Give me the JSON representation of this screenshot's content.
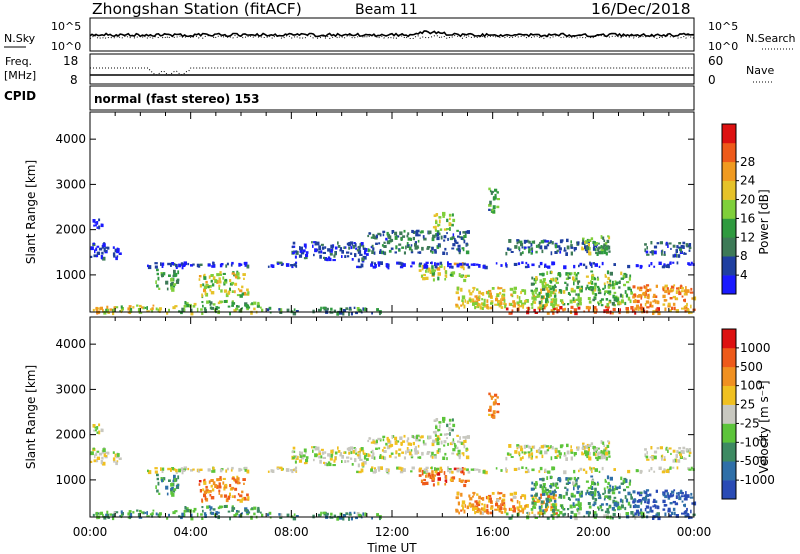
{
  "header": {
    "title": "Zhongshan Station (fitACF)",
    "beam": "Beam 11",
    "date": "16/Dec/2018"
  },
  "nsky_panel": {
    "label": "N.Sky",
    "left_ticks": [
      "10^5",
      "10^0"
    ],
    "right_label": "N.Search",
    "right_ticks": [
      "10^5",
      "10^0"
    ]
  },
  "freq_panel": {
    "label_line1": "Freq.",
    "label_line2": "[MHz]",
    "left_ticks": [
      "18",
      "8"
    ],
    "right_label": "Nave",
    "right_ticks": [
      "60",
      "0"
    ]
  },
  "cpid_panel": {
    "label": "CPID",
    "mode_text": "normal (fast stereo) 153"
  },
  "chart_data": [
    {
      "type": "heatmap",
      "name": "Power",
      "ylabel": "Slant Range [km]",
      "xlabel": "Time UT",
      "ylim": [
        180,
        4600
      ],
      "xlim_hours": [
        0,
        24
      ],
      "y_ticks": [
        "1000",
        "2000",
        "3000",
        "4000"
      ],
      "x_ticks": [
        "00:00",
        "04:00",
        "08:00",
        "12:00",
        "16:00",
        "20:00",
        "00:00"
      ],
      "colorbar_label": "Power [dB]",
      "colorbar_ticks": [
        "4",
        "8",
        "12",
        "16",
        "20",
        "24",
        "28"
      ],
      "colorbar_colors": [
        "#1a1aff",
        "#1f3fa0",
        "#3d7a57",
        "#2f9a3f",
        "#7fcf3a",
        "#e6c22a",
        "#f09a20",
        "#ee5a1a",
        "#dd1111"
      ],
      "echo_regions": [
        {
          "t": [
            0.0,
            0.5
          ],
          "r": [
            180,
            300
          ],
          "level": 0.7
        },
        {
          "t": [
            0.0,
            1.2
          ],
          "r": [
            1400,
            1750
          ],
          "level": 0.1
        },
        {
          "t": [
            0.1,
            0.6
          ],
          "r": [
            2050,
            2250
          ],
          "level": 0.05
        },
        {
          "t": [
            0.5,
            3.5
          ],
          "r": [
            180,
            350
          ],
          "level": 0.55
        },
        {
          "t": [
            2.5,
            3.5
          ],
          "r": [
            700,
            1150
          ],
          "level": 0.4
        },
        {
          "t": [
            3.5,
            6.8
          ],
          "r": [
            180,
            450
          ],
          "level": 0.45
        },
        {
          "t": [
            4.3,
            6.3
          ],
          "r": [
            550,
            1100
          ],
          "level": 0.55
        },
        {
          "t": [
            2.0,
            8.5
          ],
          "r": [
            1200,
            1300
          ],
          "level": 0.08
        },
        {
          "t": [
            7.0,
            11.5
          ],
          "r": [
            180,
            300
          ],
          "level": 0.3
        },
        {
          "t": [
            8.0,
            11.0
          ],
          "r": [
            1350,
            1750
          ],
          "level": 0.15
        },
        {
          "t": [
            11.0,
            15.0
          ],
          "r": [
            1500,
            2000
          ],
          "level": 0.25
        },
        {
          "t": [
            13.6,
            14.4
          ],
          "r": [
            2000,
            2400
          ],
          "level": 0.5
        },
        {
          "t": [
            13.0,
            15.0
          ],
          "r": [
            900,
            1300
          ],
          "level": 0.55
        },
        {
          "t": [
            14.5,
            18.5
          ],
          "r": [
            280,
            750
          ],
          "level": 0.6
        },
        {
          "t": [
            16.5,
            22.0
          ],
          "r": [
            180,
            320
          ],
          "level": 0.85
        },
        {
          "t": [
            16.5,
            20.5
          ],
          "r": [
            1500,
            1800
          ],
          "level": 0.25
        },
        {
          "t": [
            19.5,
            20.6
          ],
          "r": [
            1500,
            1900
          ],
          "level": 0.45
        },
        {
          "t": [
            17.5,
            21.5
          ],
          "r": [
            350,
            1100
          ],
          "level": 0.45
        },
        {
          "t": [
            21.5,
            24.0
          ],
          "r": [
            180,
            800
          ],
          "level": 0.75
        },
        {
          "t": [
            22.0,
            24.0
          ],
          "r": [
            1450,
            1750
          ],
          "level": 0.2
        },
        {
          "t": [
            15.8,
            16.2
          ],
          "r": [
            2400,
            3000
          ],
          "level": 0.35
        },
        {
          "t": [
            10.5,
            24.0
          ],
          "r": [
            1200,
            1300
          ],
          "level": 0.06
        }
      ]
    },
    {
      "type": "heatmap",
      "name": "Velocity",
      "ylabel": "Slant Range [km]",
      "xlabel": "Time UT",
      "ylim": [
        180,
        4600
      ],
      "xlim_hours": [
        0,
        24
      ],
      "y_ticks": [
        "1000",
        "2000",
        "3000",
        "4000"
      ],
      "x_ticks": [
        "00:00",
        "04:00",
        "08:00",
        "12:00",
        "16:00",
        "20:00",
        "00:00"
      ],
      "colorbar_label": "Velocity [m s⁻¹]",
      "colorbar_ticks": [
        "1000",
        "500",
        "100",
        "25",
        "-25",
        "-100",
        "-500",
        "-1000"
      ],
      "colorbar_colors": [
        "#2a4bb5",
        "#2f6fa8",
        "#3d8a62",
        "#5cc43a",
        "#c8c8c0",
        "#f0c020",
        "#f09020",
        "#ee5a1a",
        "#dd1111"
      ],
      "echo_regions": [
        {
          "t": [
            0.0,
            0.5
          ],
          "r": [
            180,
            300
          ],
          "level": 0.35
        },
        {
          "t": [
            0.0,
            1.2
          ],
          "r": [
            1400,
            1750
          ],
          "level": 0.5
        },
        {
          "t": [
            0.1,
            0.6
          ],
          "r": [
            2050,
            2250
          ],
          "level": 0.5
        },
        {
          "t": [
            0.5,
            3.5
          ],
          "r": [
            180,
            350
          ],
          "level": 0.3
        },
        {
          "t": [
            2.5,
            3.5
          ],
          "r": [
            700,
            1150
          ],
          "level": 0.3
        },
        {
          "t": [
            3.5,
            6.8
          ],
          "r": [
            180,
            450
          ],
          "level": 0.3
        },
        {
          "t": [
            4.3,
            6.3
          ],
          "r": [
            550,
            1100
          ],
          "level": 0.75
        },
        {
          "t": [
            2.0,
            8.5
          ],
          "r": [
            1200,
            1300
          ],
          "level": 0.5
        },
        {
          "t": [
            7.0,
            11.5
          ],
          "r": [
            180,
            300
          ],
          "level": 0.3
        },
        {
          "t": [
            8.0,
            11.0
          ],
          "r": [
            1350,
            1750
          ],
          "level": 0.5
        },
        {
          "t": [
            11.0,
            15.0
          ],
          "r": [
            1500,
            2000
          ],
          "level": 0.5
        },
        {
          "t": [
            13.6,
            14.4
          ],
          "r": [
            2000,
            2400
          ],
          "level": 0.4
        },
        {
          "t": [
            13.0,
            15.0
          ],
          "r": [
            900,
            1300
          ],
          "level": 0.8
        },
        {
          "t": [
            14.5,
            18.5
          ],
          "r": [
            280,
            750
          ],
          "level": 0.7
        },
        {
          "t": [
            16.5,
            22.0
          ],
          "r": [
            180,
            320
          ],
          "level": 0.35
        },
        {
          "t": [
            16.5,
            20.5
          ],
          "r": [
            1500,
            1800
          ],
          "level": 0.5
        },
        {
          "t": [
            19.5,
            20.6
          ],
          "r": [
            1500,
            1900
          ],
          "level": 0.5
        },
        {
          "t": [
            17.5,
            21.5
          ],
          "r": [
            350,
            1100
          ],
          "level": 0.3
        },
        {
          "t": [
            21.5,
            24.0
          ],
          "r": [
            180,
            800
          ],
          "level": 0.1
        },
        {
          "t": [
            22.0,
            24.0
          ],
          "r": [
            1450,
            1750
          ],
          "level": 0.5
        },
        {
          "t": [
            15.8,
            16.2
          ],
          "r": [
            2400,
            3000
          ],
          "level": 0.75
        },
        {
          "t": [
            10.5,
            24.0
          ],
          "r": [
            1200,
            1300
          ],
          "level": 0.5
        }
      ]
    }
  ]
}
